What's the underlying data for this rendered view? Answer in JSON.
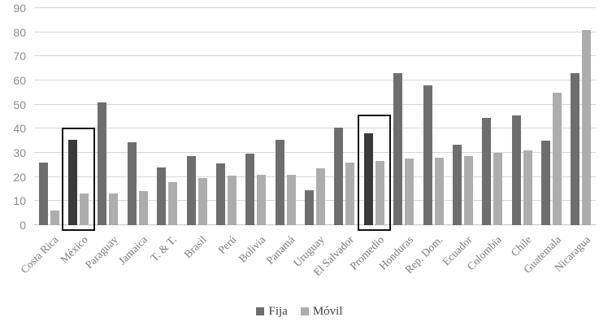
{
  "chart_data": {
    "type": "bar",
    "title": "",
    "categories": [
      "Costa Rica",
      "México",
      "Paraguay",
      "Jamaica",
      "T. & T.",
      "Brasil",
      "Perú",
      "Bolivia",
      "Panamá",
      "Uruguay",
      "El Salvador",
      "Promedio",
      "Honduras",
      "Rep. Dom.",
      "Ecuador",
      "Colombia",
      "Chile",
      "Guatemala",
      "Nicaragua"
    ],
    "series": [
      {
        "name": "Fija",
        "color": "#6e6e6e",
        "values": [
          26,
          35.5,
          51,
          34.5,
          24,
          28.5,
          25.5,
          29.5,
          35.5,
          14.5,
          40.5,
          38,
          63,
          58,
          33.5,
          44.5,
          45.5,
          35,
          63
        ]
      },
      {
        "name": "Móvil",
        "color": "#adadad",
        "values": [
          6,
          13,
          13,
          14,
          18,
          19.5,
          20.5,
          21,
          21,
          23.5,
          26,
          26.5,
          27.5,
          28,
          28.5,
          30,
          31,
          55,
          81
        ]
      }
    ],
    "highlighted_categories": [
      {
        "category": "México",
        "fija_color": "#3a3a3a",
        "box_top_value": 40.5
      },
      {
        "category": "Promedio",
        "fija_color": "#3a3a3a",
        "box_top_value": 46
      }
    ],
    "y_axis": {
      "min": 0,
      "max": 90,
      "step": 10,
      "tick_labels": [
        "0",
        "10",
        "20",
        "30",
        "40",
        "50",
        "60",
        "70",
        "80",
        "90"
      ]
    },
    "legend": {
      "position": "bottom",
      "entries": [
        "Fija",
        "Móvil"
      ]
    },
    "grid": true,
    "xlabel": "",
    "ylabel": ""
  },
  "colors": {
    "background": "#ffffff",
    "gridline": "#d6d6d6",
    "axis_line": "#c4c4c4",
    "y_tick_text": "#8c8c8c",
    "category_text": "#7a7a7a",
    "legend_text": "#3f3f3f",
    "highlight_box_border": "#111111"
  }
}
